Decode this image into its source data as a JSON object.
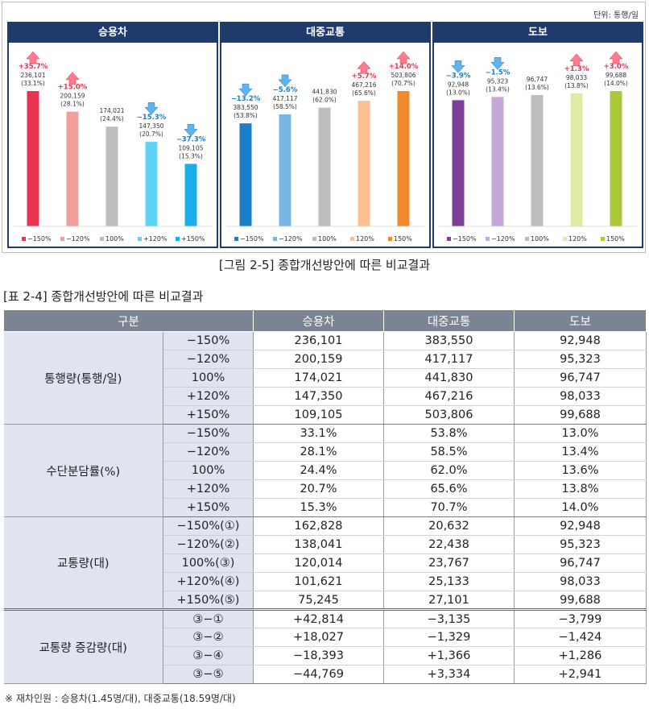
{
  "figure": {
    "unit": "단위: 통행/일",
    "caption": "[그림 2-5] 종합개선방안에 따른 비교결과",
    "charts": [
      {
        "title": "승용차",
        "bars": [
          {
            "legend": "−150%",
            "value": 236101,
            "value_label": "236,101",
            "share_label": "(33.1%)",
            "change": "+35.7%",
            "direction": "up",
            "color": "#e8344e"
          },
          {
            "legend": "−120%",
            "value": 200159,
            "value_label": "200,159",
            "share_label": "(28.1%)",
            "change": "+15.0%",
            "direction": "up",
            "color": "#f4a09a"
          },
          {
            "legend": "100%",
            "value": 174021,
            "value_label": "174,021",
            "share_label": "(24.4%)",
            "change": "",
            "direction": "none",
            "color": "#bdbdbd"
          },
          {
            "legend": "+120%",
            "value": 147350,
            "value_label": "147,350",
            "share_label": "(20.7%)",
            "change": "−15.3%",
            "direction": "down",
            "color": "#5fd3f5"
          },
          {
            "legend": "+150%",
            "value": 109105,
            "value_label": "109,105",
            "share_label": "(15.3%)",
            "change": "−37.3%",
            "direction": "down",
            "color": "#1aaeea"
          }
        ]
      },
      {
        "title": "대중교통",
        "bars": [
          {
            "legend": "−150%",
            "value": 383550,
            "value_label": "383,550",
            "share_label": "(53.8%)",
            "change": "−13.2%",
            "direction": "down",
            "color": "#1a7ec9"
          },
          {
            "legend": "−120%",
            "value": 417117,
            "value_label": "417,117",
            "share_label": "(58.5%)",
            "change": "−5.6%",
            "direction": "down",
            "color": "#7ab6e4"
          },
          {
            "legend": "100%",
            "value": 441830,
            "value_label": "441,830",
            "share_label": "(62.0%)",
            "change": "",
            "direction": "none",
            "color": "#bdbdbd"
          },
          {
            "legend": "120%",
            "value": 467216,
            "value_label": "467,216",
            "share_label": "(65.6%)",
            "change": "+5.7%",
            "direction": "up",
            "color": "#fcbf91"
          },
          {
            "legend": "150%",
            "value": 503806,
            "value_label": "503,806",
            "share_label": "(70.7%)",
            "change": "+14.0%",
            "direction": "up",
            "color": "#f08a2c"
          }
        ]
      },
      {
        "title": "도보",
        "bars": [
          {
            "legend": "−150%",
            "value": 92948,
            "value_label": "92,948",
            "share_label": "(13.0%)",
            "change": "−3.9%",
            "direction": "down",
            "color": "#7b3f99"
          },
          {
            "legend": "−120%",
            "value": 95323,
            "value_label": "95,323",
            "share_label": "(13.4%)",
            "change": "−1.5%",
            "direction": "down",
            "color": "#c4a8d8"
          },
          {
            "legend": "100%",
            "value": 96747,
            "value_label": "96,747",
            "share_label": "(13.6%)",
            "change": "",
            "direction": "none",
            "color": "#bdbdbd"
          },
          {
            "legend": "120%",
            "value": 98033,
            "value_label": "98,033",
            "share_label": "(13.8%)",
            "change": "+1.3%",
            "direction": "up",
            "color": "#dfeaa5"
          },
          {
            "legend": "150%",
            "value": 99688,
            "value_label": "99,688",
            "share_label": "(14.0%)",
            "change": "+3.0%",
            "direction": "up",
            "color": "#a9c93a"
          }
        ]
      }
    ]
  },
  "chart_data": [
    {
      "type": "bar",
      "title": "승용차",
      "categories": [
        "−150%",
        "−120%",
        "100%",
        "+120%",
        "+150%"
      ],
      "values": [
        236101,
        200159,
        174021,
        147350,
        109105
      ]
    },
    {
      "type": "bar",
      "title": "대중교통",
      "categories": [
        "−150%",
        "−120%",
        "100%",
        "120%",
        "150%"
      ],
      "values": [
        383550,
        417117,
        441830,
        467216,
        503806
      ]
    },
    {
      "type": "bar",
      "title": "도보",
      "categories": [
        "−150%",
        "−120%",
        "100%",
        "120%",
        "150%"
      ],
      "values": [
        92948,
        95323,
        96747,
        98033,
        99688
      ]
    }
  ],
  "table": {
    "caption": "[표 2-4] 종합개선방안에 따른 비교결과",
    "headers": [
      "구분",
      "승용차",
      "대중교통",
      "도보"
    ],
    "groups": [
      {
        "category": "통행량(통행/일)",
        "rows": [
          {
            "sub": "−150%",
            "car": "236,101",
            "transit": "383,550",
            "walk": "92,948"
          },
          {
            "sub": "−120%",
            "car": "200,159",
            "transit": "417,117",
            "walk": "95,323"
          },
          {
            "sub": "100%",
            "car": "174,021",
            "transit": "441,830",
            "walk": "96,747"
          },
          {
            "sub": "+120%",
            "car": "147,350",
            "transit": "467,216",
            "walk": "98,033"
          },
          {
            "sub": "+150%",
            "car": "109,105",
            "transit": "503,806",
            "walk": "99,688"
          }
        ]
      },
      {
        "category": "수단분담률(%)",
        "rows": [
          {
            "sub": "−150%",
            "car": "33.1%",
            "transit": "53.8%",
            "walk": "13.0%"
          },
          {
            "sub": "−120%",
            "car": "28.1%",
            "transit": "58.5%",
            "walk": "13.4%"
          },
          {
            "sub": "100%",
            "car": "24.4%",
            "transit": "62.0%",
            "walk": "13.6%"
          },
          {
            "sub": "+120%",
            "car": "20.7%",
            "transit": "65.6%",
            "walk": "13.8%"
          },
          {
            "sub": "+150%",
            "car": "15.3%",
            "transit": "70.7%",
            "walk": "14.0%"
          }
        ]
      },
      {
        "category": "교통량(대)",
        "rows": [
          {
            "sub": "−150%(①)",
            "car": "162,828",
            "transit": "20,632",
            "walk": "92,948"
          },
          {
            "sub": "−120%(②)",
            "car": "138,041",
            "transit": "22,438",
            "walk": "95,323"
          },
          {
            "sub": "100%(③)",
            "car": "120,014",
            "transit": "23,767",
            "walk": "96,747"
          },
          {
            "sub": "+120%(④)",
            "car": "101,621",
            "transit": "25,133",
            "walk": "98,033"
          },
          {
            "sub": "+150%(⑤)",
            "car": "75,245",
            "transit": "27,101",
            "walk": "99,688"
          }
        ]
      },
      {
        "category": "교통량 증감량(대)",
        "rows": [
          {
            "sub": "③−①",
            "car": "+42,814",
            "transit": "−3,135",
            "walk": "−3,799"
          },
          {
            "sub": "③−②",
            "car": "+18,027",
            "transit": "−1,329",
            "walk": "−1,424"
          },
          {
            "sub": "③−④",
            "car": "−18,393",
            "transit": "+1,366",
            "walk": "+1,286"
          },
          {
            "sub": "③−⑤",
            "car": "−44,769",
            "transit": "+3,334",
            "walk": "+2,941"
          }
        ]
      }
    ]
  },
  "footnote": "※ 재차인원 : 승용차(1.45명/대), 대중교통(18.59명/대)"
}
